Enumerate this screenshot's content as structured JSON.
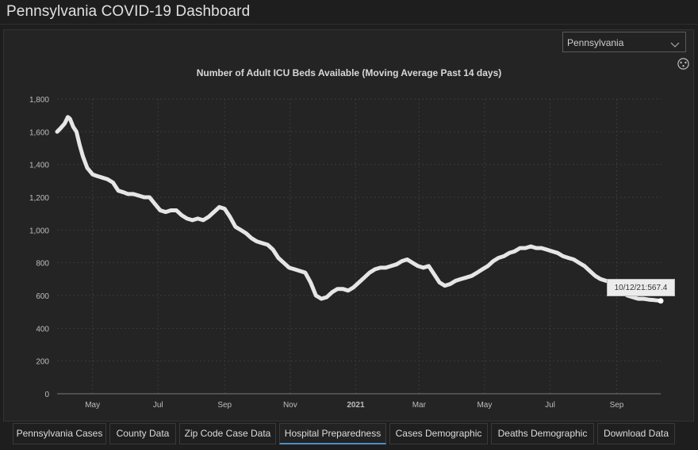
{
  "app": {
    "title": "Pennsylvania COVID-19 Dashboard"
  },
  "filter": {
    "region": "Pennsylvania"
  },
  "tooltip": {
    "text": "10/12/21:567.4"
  },
  "tabs": [
    {
      "label": "Pennsylvania Cases"
    },
    {
      "label": "County Data"
    },
    {
      "label": "Zip Code Case Data"
    },
    {
      "label": "Hospital Preparedness",
      "active": true
    },
    {
      "label": "Cases Demographic"
    },
    {
      "label": "Deaths Demographic"
    },
    {
      "label": "Download Data"
    }
  ],
  "colors": {
    "background": "#1e1e1e",
    "line": "#e6e6e6",
    "accent": "#4a90c8"
  },
  "chart_data": {
    "type": "line",
    "title": "Number of Adult ICU Beds Available (Moving Average Past 14 days)",
    "xlabel": "",
    "ylabel": "",
    "ylim": [
      0,
      1800
    ],
    "yticks": [
      "0",
      "200",
      "400",
      "600",
      "800",
      "1,000",
      "1,200",
      "1,400",
      "1,600",
      "1,800"
    ],
    "xticks": [
      {
        "label": "May",
        "date": "2020-05-01"
      },
      {
        "label": "Jul",
        "date": "2020-07-01"
      },
      {
        "label": "Sep",
        "date": "2020-09-01"
      },
      {
        "label": "Nov",
        "date": "2020-11-01"
      },
      {
        "label": "2021",
        "date": "2021-01-01"
      },
      {
        "label": "Mar",
        "date": "2021-03-01"
      },
      {
        "label": "May",
        "date": "2021-05-01"
      },
      {
        "label": "Jul",
        "date": "2021-07-01"
      },
      {
        "label": "Sep",
        "date": "2021-09-01"
      }
    ],
    "xrange": [
      "2020-03-29",
      "2021-10-12"
    ],
    "grid": true,
    "series": [
      {
        "x": [
          "2020-03-29",
          "2020-04-01",
          "2020-04-05",
          "2020-04-08",
          "2020-04-10",
          "2020-04-13",
          "2020-04-16",
          "2020-04-19",
          "2020-04-22",
          "2020-04-26",
          "2020-05-01",
          "2020-05-05",
          "2020-05-10",
          "2020-05-15",
          "2020-05-20",
          "2020-05-25",
          "2020-05-30",
          "2020-06-03",
          "2020-06-08",
          "2020-06-13",
          "2020-06-18",
          "2020-06-23",
          "2020-06-28",
          "2020-07-03",
          "2020-07-08",
          "2020-07-13",
          "2020-07-18",
          "2020-07-23",
          "2020-07-28",
          "2020-08-02",
          "2020-08-07",
          "2020-08-12",
          "2020-08-17",
          "2020-08-22",
          "2020-08-27",
          "2020-09-01",
          "2020-09-06",
          "2020-09-11",
          "2020-09-16",
          "2020-09-21",
          "2020-09-26",
          "2020-10-01",
          "2020-10-06",
          "2020-10-11",
          "2020-10-16",
          "2020-10-21",
          "2020-10-26",
          "2020-10-31",
          "2020-11-05",
          "2020-11-10",
          "2020-11-15",
          "2020-11-20",
          "2020-11-25",
          "2020-11-30",
          "2020-12-05",
          "2020-12-10",
          "2020-12-15",
          "2020-12-20",
          "2020-12-25",
          "2020-12-30",
          "2021-01-04",
          "2021-01-09",
          "2021-01-14",
          "2021-01-19",
          "2021-01-24",
          "2021-01-29",
          "2021-02-03",
          "2021-02-08",
          "2021-02-13",
          "2021-02-18",
          "2021-02-23",
          "2021-02-28",
          "2021-03-05",
          "2021-03-10",
          "2021-03-15",
          "2021-03-20",
          "2021-03-25",
          "2021-03-30",
          "2021-04-04",
          "2021-04-09",
          "2021-04-14",
          "2021-04-19",
          "2021-04-24",
          "2021-04-29",
          "2021-05-04",
          "2021-05-09",
          "2021-05-14",
          "2021-05-19",
          "2021-05-24",
          "2021-05-29",
          "2021-06-03",
          "2021-06-08",
          "2021-06-13",
          "2021-06-18",
          "2021-06-23",
          "2021-06-28",
          "2021-07-03",
          "2021-07-08",
          "2021-07-13",
          "2021-07-18",
          "2021-07-23",
          "2021-07-28",
          "2021-08-02",
          "2021-08-07",
          "2021-08-12",
          "2021-08-17",
          "2021-08-22",
          "2021-08-27",
          "2021-09-01",
          "2021-09-06",
          "2021-09-11",
          "2021-09-16",
          "2021-09-21",
          "2021-09-26",
          "2021-10-01",
          "2021-10-06",
          "2021-10-12"
        ],
        "values": [
          1600,
          1620,
          1650,
          1690,
          1680,
          1630,
          1600,
          1520,
          1450,
          1380,
          1340,
          1330,
          1320,
          1310,
          1290,
          1240,
          1230,
          1220,
          1220,
          1210,
          1200,
          1200,
          1160,
          1120,
          1110,
          1120,
          1120,
          1090,
          1070,
          1060,
          1070,
          1060,
          1080,
          1110,
          1140,
          1130,
          1080,
          1020,
          1000,
          980,
          950,
          930,
          920,
          910,
          880,
          830,
          800,
          770,
          760,
          750,
          740,
          680,
          600,
          580,
          590,
          620,
          640,
          640,
          630,
          650,
          680,
          710,
          740,
          760,
          770,
          770,
          780,
          790,
          810,
          820,
          800,
          780,
          770,
          780,
          730,
          680,
          660,
          670,
          690,
          700,
          710,
          720,
          740,
          760,
          780,
          810,
          830,
          840,
          860,
          870,
          890,
          890,
          900,
          890,
          890,
          880,
          870,
          860,
          840,
          830,
          820,
          800,
          780,
          750,
          720,
          700,
          690,
          680,
          650,
          620,
          600,
          590,
          580,
          580,
          575,
          572,
          567.4
        ]
      }
    ]
  }
}
